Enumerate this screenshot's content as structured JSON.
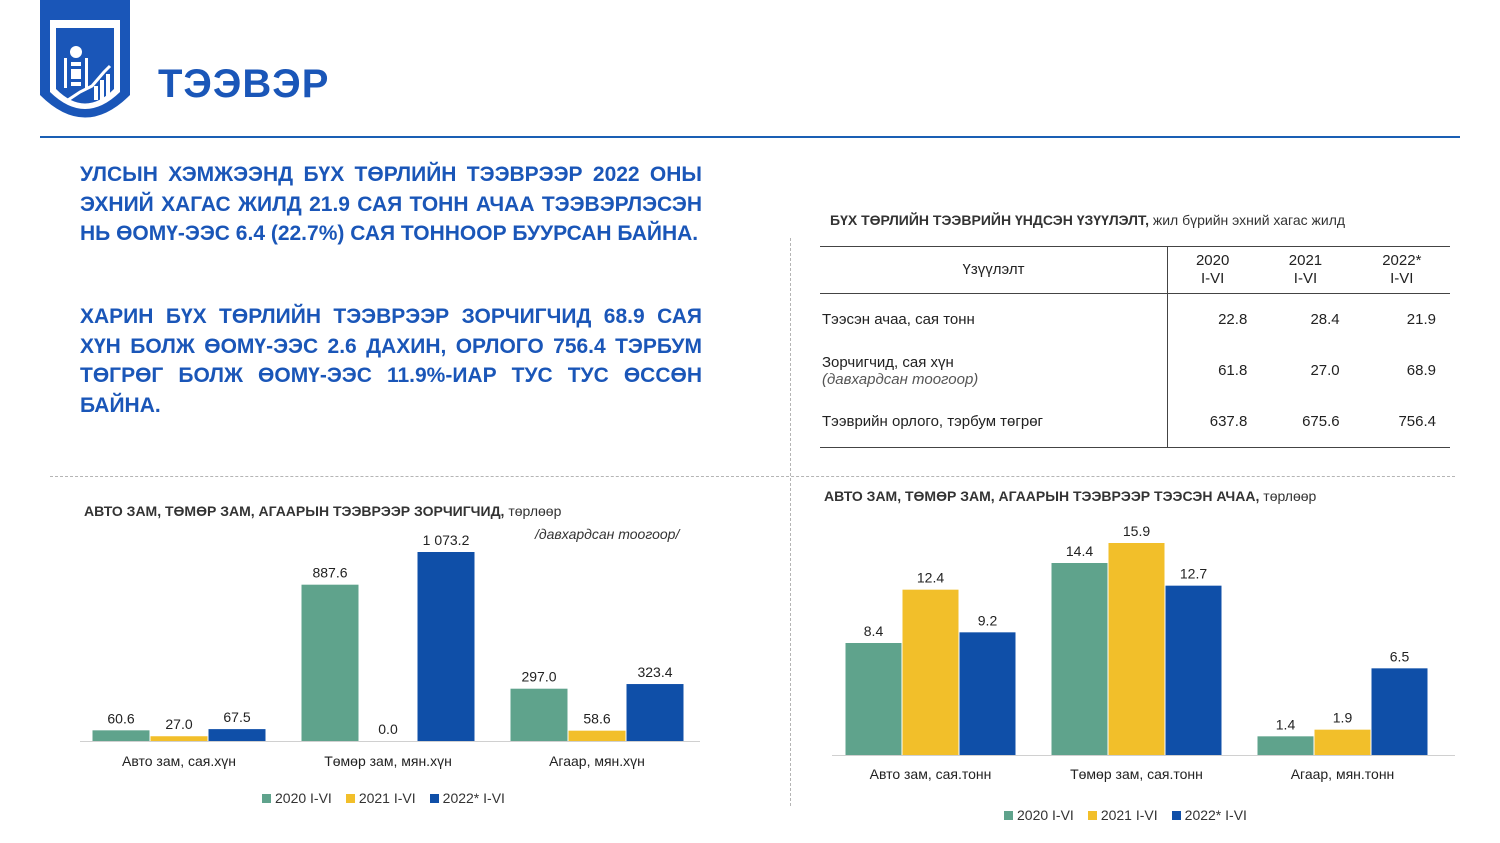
{
  "header": {
    "title": "ТЭЭВЭР"
  },
  "intro": {
    "p1": "УЛСЫН ХЭМЖЭЭНД БҮХ ТӨРЛИЙН ТЭЭВРЭЭР 2022 ОНЫ ЭХНИЙ ХАГАС ЖИЛД 21.9 САЯ ТОНН АЧАА ТЭЭВЭРЛЭСЭН НЬ ӨОМҮ-ЭЭС 6.4 (22.7%) САЯ ТОННООР БУУРСАН БАЙНА.",
    "p2": "ХАРИН БҮХ ТӨРЛИЙН ТЭЭВРЭЭР ЗОРЧИГЧИД 68.9 САЯ ХҮН БОЛЖ ӨОМҮ-ЭЭС 2.6 ДАХИН, ОРЛОГО 756.4 ТЭРБУМ ТӨГРӨГ БОЛЖ ӨОМҮ-ЭЭС 11.9%-ИАР ТУС ТУС ӨССӨН БАЙНА."
  },
  "table": {
    "title_bold": "БҮХ ТӨРЛИЙН ТЭЭВРИЙН ҮНДСЭН ҮЗҮҮЛЭЛТ,",
    "title_rest": " жил бүрийн эхний хагас жилд",
    "header_label": "Үзүүлэлт",
    "columns": [
      {
        "year": "2020",
        "period": "I-VI"
      },
      {
        "year": "2021",
        "period": "I-VI"
      },
      {
        "year": "2022*",
        "period": "I-VI"
      }
    ],
    "rows": [
      {
        "label": "Тээсэн ачаа, сая тонн",
        "sub": "",
        "values": [
          "22.8",
          "28.4",
          "21.9"
        ]
      },
      {
        "label": "Зорчигчид, сая хүн",
        "sub": "(давхардсан тоогоор)",
        "values": [
          "61.8",
          "27.0",
          "68.9"
        ]
      },
      {
        "label": "Тээврийн орлого, тэрбум төгрөг",
        "sub": "",
        "values": [
          "637.8",
          "675.6",
          "756.4"
        ]
      }
    ]
  },
  "colors": {
    "y2020": "#5fa38c",
    "y2021": "#f2bf2a",
    "y2022": "#0f4fa8",
    "brand": "#1a56b8"
  },
  "legend": [
    "2020 I-VI",
    "2021 I-VI",
    "2022* I-VI"
  ],
  "chart_data": [
    {
      "type": "bar",
      "title": "АВТО ЗАМ, ТӨМӨР ЗАМ, АГААРЫН ТЭЭВРЭЭР ЗОРЧИГЧИД,",
      "title_rest": " төрлөөр",
      "note": "/давхардсан тоогоор/",
      "categories": [
        "Авто зам, сая.хүн",
        "Төмөр зам, мян.хүн",
        "Агаар, мян.хүн"
      ],
      "series": [
        {
          "name": "2020 I-VI",
          "values": [
            60.6,
            887.6,
            297.0
          ],
          "labels": [
            "60.6",
            "887.6",
            "297.0"
          ]
        },
        {
          "name": "2021 I-VI",
          "values": [
            27.0,
            0.0,
            58.6
          ],
          "labels": [
            "27.0",
            "0.0",
            "58.6"
          ]
        },
        {
          "name": "2022* I-VI",
          "values": [
            67.5,
            1073.2,
            323.4
          ],
          "labels": [
            "67.5",
            "1 073.2",
            "323.4"
          ]
        }
      ],
      "ylim": [
        0,
        1073.2
      ],
      "grid": false,
      "legend_position": "bottom"
    },
    {
      "type": "bar",
      "title": "АВТО ЗАМ, ТӨМӨР ЗАМ, АГААРЫН ТЭЭВРЭЭР ТЭЭСЭН АЧАА,",
      "title_rest": " төрлөөр",
      "categories": [
        "Авто зам, сая.тонн",
        "Төмөр зам, сая.тонн",
        "Агаар, мян.тонн"
      ],
      "series": [
        {
          "name": "2020 I-VI",
          "values": [
            8.4,
            14.4,
            1.4
          ],
          "labels": [
            "8.4",
            "14.4",
            "1.4"
          ]
        },
        {
          "name": "2021 I-VI",
          "values": [
            12.4,
            15.9,
            1.9
          ],
          "labels": [
            "12.4",
            "15.9",
            "1.9"
          ]
        },
        {
          "name": "2022* I-VI",
          "values": [
            9.2,
            12.7,
            6.5
          ],
          "labels": [
            "9.2",
            "12.7",
            "6.5"
          ]
        }
      ],
      "ylim": [
        0,
        15.9
      ],
      "grid": false,
      "legend_position": "bottom"
    }
  ]
}
